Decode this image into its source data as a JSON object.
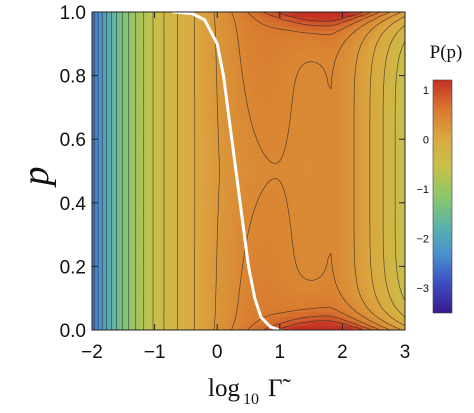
{
  "chart_data": {
    "type": "heatmap",
    "subtype": "contour",
    "xlabel": "log₁₀ Γ̃",
    "xlabel_parts": {
      "prefix": "log",
      "subscript": "10",
      "symbol": "Γ̃"
    },
    "ylabel": "p",
    "colorbar_label": "P(p)",
    "xlim": [
      -2,
      3
    ],
    "ylim": [
      0,
      1
    ],
    "x_ticks": [
      -2,
      -1,
      0,
      1,
      2,
      3
    ],
    "x_tick_labels": [
      "−2",
      "−1",
      "0",
      "1",
      "2",
      "3"
    ],
    "y_ticks": [
      0.0,
      0.2,
      0.4,
      0.6,
      0.8,
      1.0
    ],
    "y_tick_labels": [
      "0.0",
      "0.2",
      "0.4",
      "0.6",
      "0.8",
      "1.0"
    ],
    "colorbar_range": [
      -3.5,
      1.2
    ],
    "colorbar_ticks": [
      -3,
      -2,
      -1,
      0,
      1
    ],
    "colorbar_tick_labels": [
      "−3",
      "−2",
      "−1",
      "0",
      "1"
    ],
    "colormap": [
      "#3a1a8c",
      "#3b4cc0",
      "#4a8fd0",
      "#5ab4a8",
      "#8cc66a",
      "#c6c24a",
      "#dba840",
      "#d9782e",
      "#c43024"
    ],
    "contour_count": 24,
    "curve_color": "#ffffff",
    "curve": {
      "x": [
        -0.7,
        -0.4,
        -0.2,
        0,
        0.1,
        0.2,
        0.3,
        0.4,
        0.5,
        0.6,
        0.7,
        0.85,
        1.0
      ],
      "y": [
        1.0,
        0.995,
        0.975,
        0.9,
        0.8,
        0.65,
        0.5,
        0.35,
        0.2,
        0.1,
        0.04,
        0.01,
        0.0
      ]
    }
  }
}
